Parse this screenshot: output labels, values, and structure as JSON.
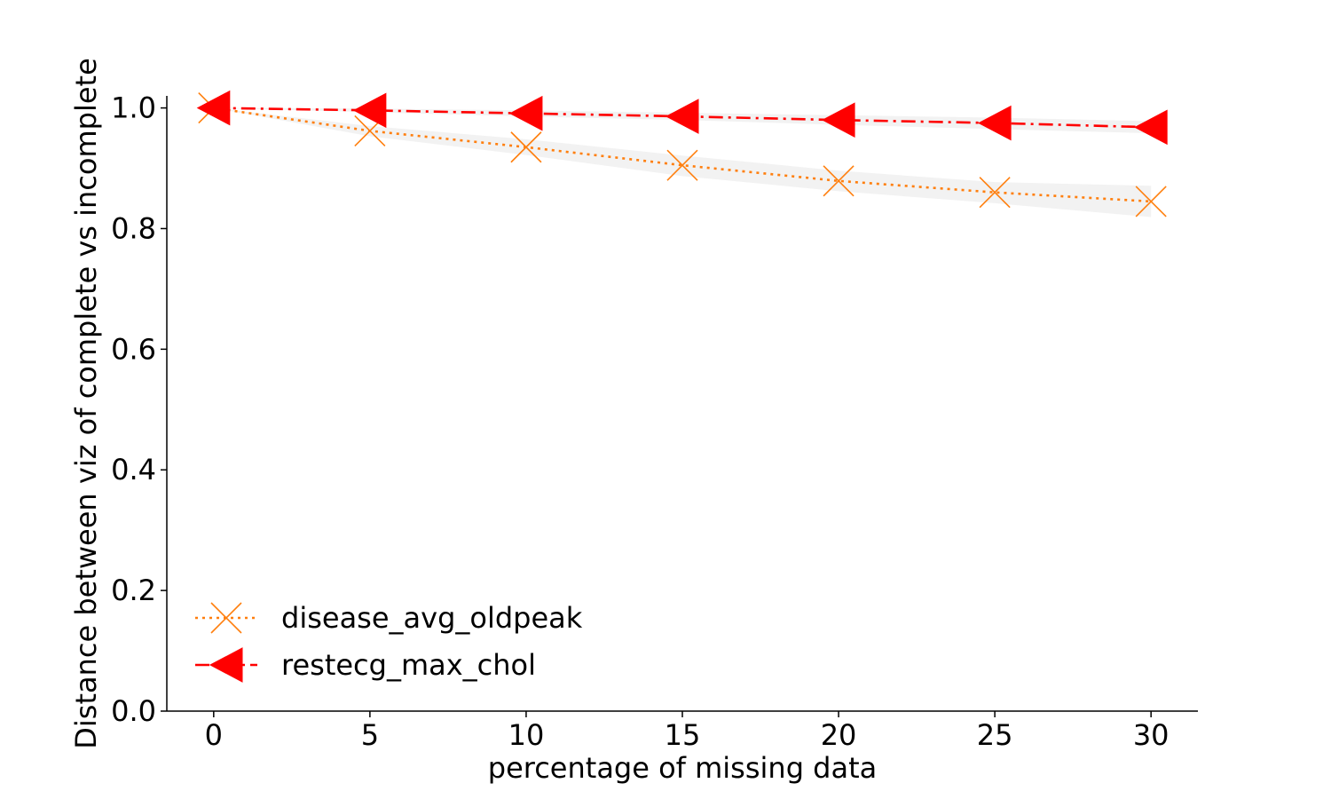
{
  "chart_data": {
    "type": "line",
    "title": "",
    "xlabel": "percentage of missing data",
    "ylabel": "Distance between viz of complete vs incomplete",
    "x": [
      0,
      5,
      10,
      15,
      20,
      25,
      30
    ],
    "xlim": [
      -1.5,
      31.5
    ],
    "ylim": [
      0.0,
      1.02
    ],
    "xticks": [
      "0",
      "5",
      "10",
      "15",
      "20",
      "25",
      "30"
    ],
    "yticks": [
      "0.0",
      "0.2",
      "0.4",
      "0.6",
      "0.8",
      "1.0"
    ],
    "grid": false,
    "legend_position": "lower-left",
    "series": [
      {
        "name": "disease_avg_oldpeak",
        "color": "#ff7f0e",
        "marker": "x",
        "linestyle": "dotted",
        "values": [
          1.0,
          0.962,
          0.935,
          0.905,
          0.879,
          0.86,
          0.845
        ],
        "band_low": [
          1.0,
          0.953,
          0.922,
          0.887,
          0.862,
          0.842,
          0.819
        ],
        "band_high": [
          1.0,
          0.97,
          0.948,
          0.921,
          0.896,
          0.877,
          0.871
        ]
      },
      {
        "name": "restecg_max_chol",
        "color": "#ff0000",
        "marker": "triangle-left",
        "linestyle": "dashdot",
        "values": [
          1.0,
          0.996,
          0.991,
          0.986,
          0.98,
          0.975,
          0.968
        ],
        "band_low": [
          1.0,
          0.993,
          0.986,
          0.98,
          0.972,
          0.965,
          0.958
        ],
        "band_high": [
          1.0,
          0.999,
          0.996,
          0.992,
          0.988,
          0.984,
          0.978
        ]
      }
    ]
  }
}
